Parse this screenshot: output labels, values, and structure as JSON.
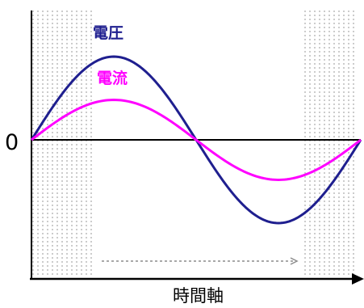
{
  "chart_data": {
    "type": "line",
    "xlabel": "時間軸",
    "zero_label": "0",
    "grid": false,
    "series": [
      {
        "name": "電圧",
        "color": "#1f1f8f",
        "amplitude": 1.0,
        "period_fraction": 1.0
      },
      {
        "name": "電流",
        "color": "#ff00ff",
        "amplitude": 0.48,
        "period_fraction": 1.0
      }
    ],
    "x_range": [
      0,
      1
    ],
    "y_range": [
      -1.1,
      1.1
    ],
    "decoration": {
      "dotted_band_color": "#9a9a9a",
      "axis_color": "#000000",
      "arrow_color": "#8c8c8c"
    }
  }
}
